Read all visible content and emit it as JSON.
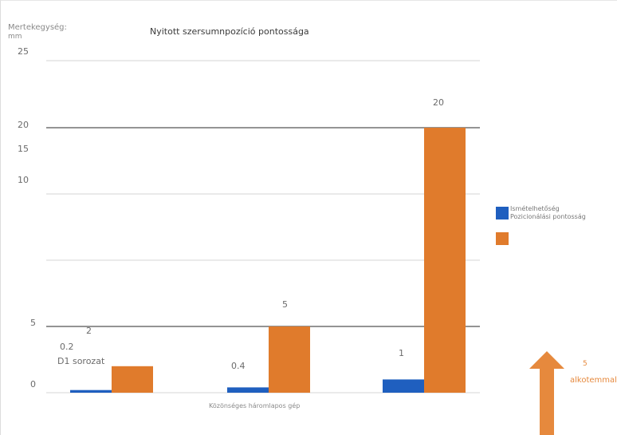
{
  "header": {
    "unit_label": "Mertekegység:",
    "unit": "mm",
    "title": "Nyitott szersumnpozíció pontossága"
  },
  "ytick_labels": [
    "25",
    "20",
    "15",
    "10",
    "5",
    "0"
  ],
  "legend": {
    "items": [
      {
        "label": "Ismételhetőség",
        "color": "#1f5fbf"
      },
      {
        "label": "Pozicionálási pontosság",
        "color": "#e07b2c"
      }
    ]
  },
  "annotations": {
    "series_note": "D1 sorozat",
    "arrow_value": "5",
    "arrow_label": "alkotemmal",
    "arrow_color": "#e6893d"
  },
  "chart_data": {
    "type": "bar",
    "title": "Nyitott szersumnpozíció pontossága",
    "xlabel": "Közönséges háromlapos gép",
    "ylabel": "mm",
    "categories": [
      "",
      "",
      ""
    ],
    "series": [
      {
        "name": "Ismételhetőség",
        "color": "#1f5fbf",
        "values": [
          0.2,
          0.4,
          1
        ],
        "labels": [
          "0.2",
          "0.4",
          "1"
        ]
      },
      {
        "name": "Pozicionálási pontosság",
        "color": "#e07b2c",
        "values": [
          2,
          5,
          20
        ],
        "labels": [
          "2",
          "5",
          "20"
        ]
      }
    ],
    "gridlines": [
      0,
      5,
      10,
      15,
      20,
      25
    ],
    "ylim": [
      0,
      25
    ],
    "grid": true,
    "legend_position": "right"
  }
}
